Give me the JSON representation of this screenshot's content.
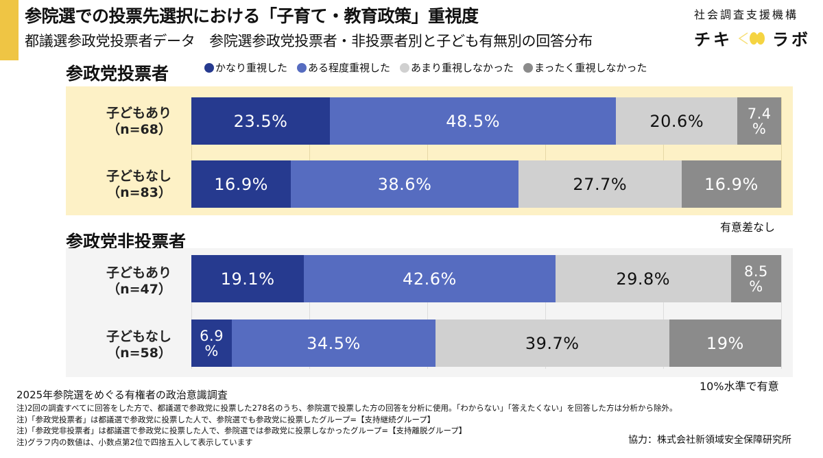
{
  "header": {
    "title": "参院選での投票先選択における「子育て・教育政策」重視度",
    "subtitle": "都議選参政党投票者データ　参院選参政党投票者・非投票者別と子ども有無別の回答分布"
  },
  "logo": {
    "org": "社会調査支援機構",
    "name_left": "チキ",
    "name_right": "ラボ",
    "icon": "eye-icon",
    "accent_color": "#f5d442"
  },
  "colors": {
    "accent": "#efc544",
    "panel_voters": "#fdf1c6",
    "panel_nonvoters": "#f4f4f4"
  },
  "chart_data": {
    "type": "bar",
    "orientation": "horizontal-stacked-100",
    "title": "参院選での投票先選択における「子育て・教育政策」重視度",
    "xlim": [
      0,
      100
    ],
    "grid": true,
    "grid_ticks": [
      0,
      20,
      40,
      60,
      80,
      100
    ],
    "legend_position": "top",
    "legend": [
      {
        "label": "●かなり重視した",
        "color": "#263a8f"
      },
      {
        "label": "●ある程度重視した",
        "color": "#566cc0"
      },
      {
        "label": "●あまり重視しなかった",
        "color": "#d0d0d0"
      },
      {
        "label": "●まったく重視しなかった",
        "color": "#8b8b8b"
      }
    ],
    "series_names": [
      "かなり重視した",
      "ある程度重視した",
      "あまり重視しなかった",
      "まったく重視しなかった"
    ],
    "groups": [
      {
        "title": "参政党投票者",
        "significance": "有意差なし",
        "rows": [
          {
            "label": "子どもあり",
            "n": "（n=68）",
            "values": [
              23.5,
              48.5,
              20.6,
              7.4
            ],
            "labels": [
              "23.5%",
              "48.5%",
              "20.6%",
              "7.4\n%"
            ]
          },
          {
            "label": "子どもなし",
            "n": "（n=83）",
            "values": [
              16.9,
              38.6,
              27.7,
              16.9
            ],
            "labels": [
              "16.9%",
              "38.6%",
              "27.7%",
              "16.9%"
            ]
          }
        ]
      },
      {
        "title": "参政党非投票者",
        "significance": "10%水準で有意",
        "rows": [
          {
            "label": "子どもあり",
            "n": "（n=47）",
            "values": [
              19.1,
              42.6,
              29.8,
              8.5
            ],
            "labels": [
              "19.1%",
              "42.6%",
              "29.8%",
              "8.5\n%"
            ]
          },
          {
            "label": "子どもなし",
            "n": "（n=58）",
            "values": [
              6.9,
              34.5,
              39.7,
              19.0
            ],
            "labels": [
              "6.9\n%",
              "34.5%",
              "39.7%",
              "19%"
            ]
          }
        ]
      }
    ]
  },
  "footer": {
    "source": "2025年参院選をめぐる有権者の政治意識調査",
    "notes": [
      "注)2回の調査すべてに回答をした方で、都議選で参政党に投票した278名のうち、参院選で投票した方の回答を分析に使用。「わからない」「答えたくない」を回答した方は分析から除外。",
      "注)「参政党投票者」は都議選で参政党に投票した人で、参院選でも参政党に投票したグループ=【支持継続グループ】",
      "注)「参政党非投票者」は都議選で参政党に投票した人で、参院選では参政党に投票しなかったグループ=【支持離脱グループ】",
      "注)グラフ内の数値は、小数点第2位で四捨五入して表示しています"
    ],
    "credit": "協力：株式会社新領域安全保障研究所"
  }
}
